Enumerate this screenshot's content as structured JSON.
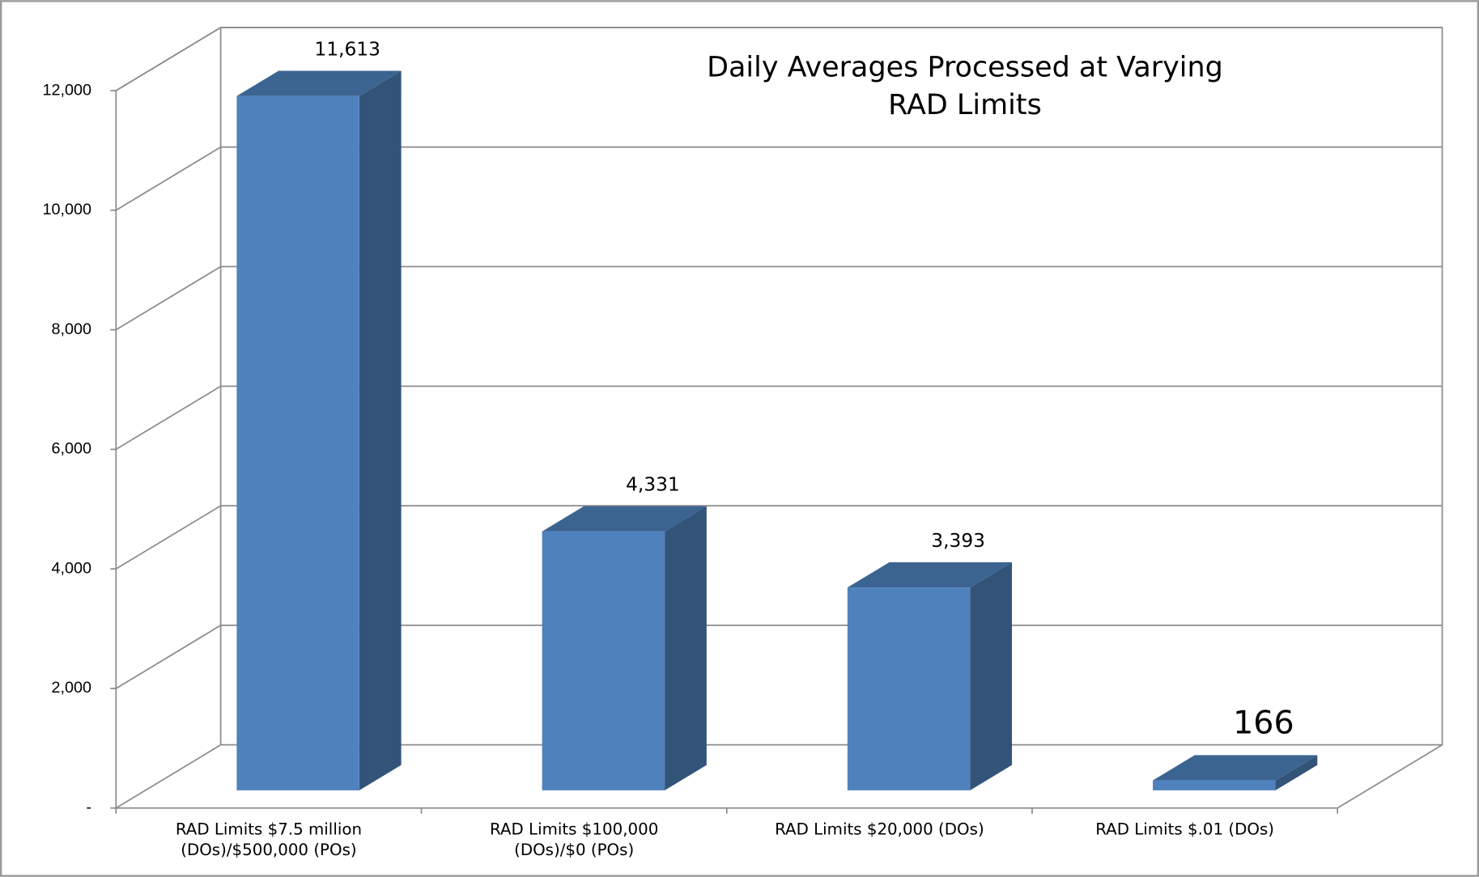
{
  "chart_data": {
    "type": "bar3d",
    "title": "Daily Averages Processed at Varying RAD Limits",
    "categories": [
      "RAD Limits $7.5 million (DOs)/$500,000 (POs)",
      "RAD Limits $100,000 (DOs)/$0 (POs)",
      "RAD Limits $20,000 (DOs)",
      "RAD Limits $.01 (DOs)"
    ],
    "values": [
      11613,
      4331,
      3393,
      166
    ],
    "value_labels": [
      "11,613",
      "4,331",
      "3,393",
      "166"
    ],
    "color": "#4f81bd",
    "ylim": [
      0,
      12000
    ],
    "yticks": [
      {
        "value": 0,
        "label": "-"
      },
      {
        "value": 2000,
        "label": "2,000"
      },
      {
        "value": 4000,
        "label": "4,000"
      },
      {
        "value": 6000,
        "label": "6,000"
      },
      {
        "value": 8000,
        "label": "8,000"
      },
      {
        "value": 10000,
        "label": "10,000"
      },
      {
        "value": 12000,
        "label": "12,000"
      }
    ],
    "grid": true
  }
}
